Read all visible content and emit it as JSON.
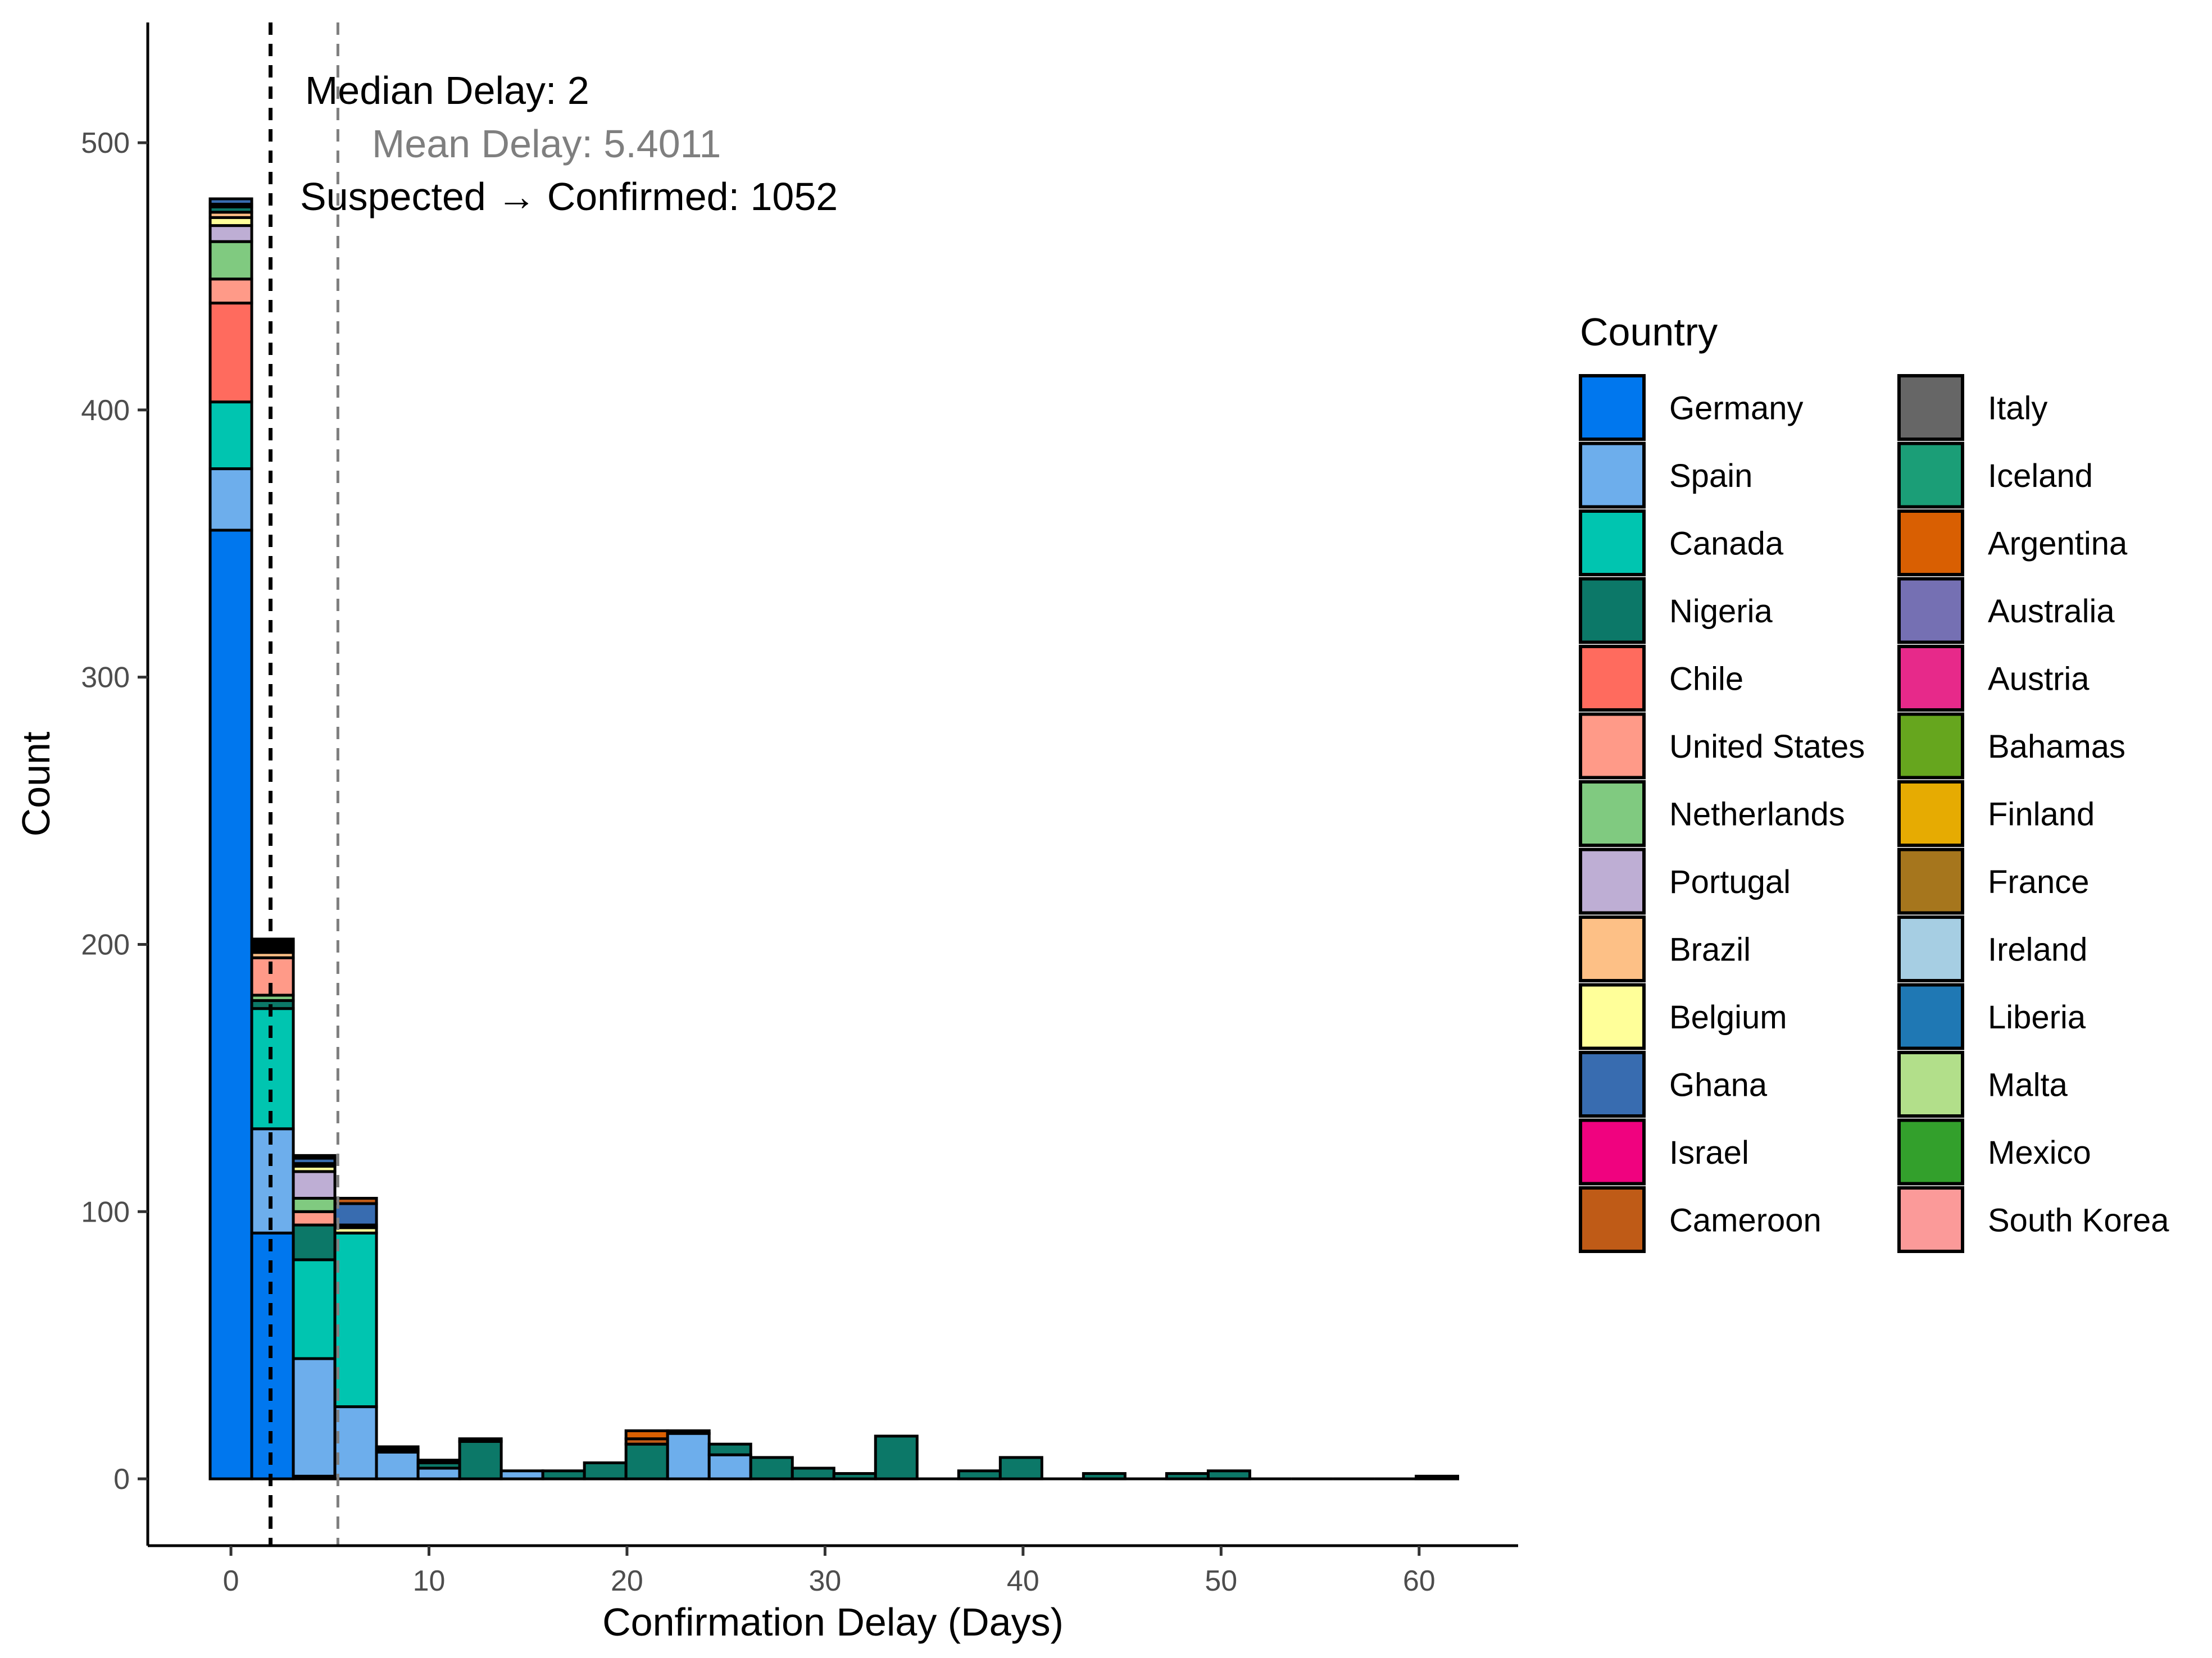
{
  "chart_data": {
    "type": "bar",
    "stacked": true,
    "xlabel": "Confirmation Delay (Days)",
    "ylabel": "Count",
    "xlim": [
      -4.2,
      65
    ],
    "ylim": [
      -25,
      545
    ],
    "xticks": [
      0,
      10,
      20,
      30,
      40,
      50,
      60
    ],
    "yticks": [
      0,
      100,
      200,
      300,
      400,
      500
    ],
    "bin_width": 2.1,
    "grid": false,
    "legend": {
      "title": "Country",
      "placement": "right",
      "columns": 2,
      "items": [
        {
          "name": "Germany",
          "color": "#0077EE"
        },
        {
          "name": "Spain",
          "color": "#6DAEEC"
        },
        {
          "name": "Canada",
          "color": "#00C5B0"
        },
        {
          "name": "Nigeria",
          "color": "#0C7868"
        },
        {
          "name": "Chile",
          "color": "#FF6B5E"
        },
        {
          "name": "United States",
          "color": "#FF9A88"
        },
        {
          "name": "Netherlands",
          "color": "#80CA80"
        },
        {
          "name": "Portugal",
          "color": "#BEAED4"
        },
        {
          "name": "Brazil",
          "color": "#FDC086"
        },
        {
          "name": "Belgium",
          "color": "#FFFF99"
        },
        {
          "name": "Ghana",
          "color": "#386CB0"
        },
        {
          "name": "Israel",
          "color": "#F0027F"
        },
        {
          "name": "Cameroon",
          "color": "#BF5B17"
        },
        {
          "name": "Italy",
          "color": "#666666"
        },
        {
          "name": "Iceland",
          "color": "#1B9E77"
        },
        {
          "name": "Argentina",
          "color": "#D95F02"
        },
        {
          "name": "Australia",
          "color": "#7570B3"
        },
        {
          "name": "Austria",
          "color": "#E7298A"
        },
        {
          "name": "Bahamas",
          "color": "#66A61E"
        },
        {
          "name": "Finland",
          "color": "#E6AB02"
        },
        {
          "name": "France",
          "color": "#A6761D"
        },
        {
          "name": "Ireland",
          "color": "#A6CEE3"
        },
        {
          "name": "Liberia",
          "color": "#1F78B4"
        },
        {
          "name": "Malta",
          "color": "#B2DF8A"
        },
        {
          "name": "Mexico",
          "color": "#33A02C"
        },
        {
          "name": "South Korea",
          "color": "#FB9A99"
        }
      ]
    },
    "bins": [
      {
        "x": 0,
        "segments": [
          {
            "country": "Germany",
            "value": 355
          },
          {
            "country": "Spain",
            "value": 23
          },
          {
            "country": "Canada",
            "value": 25
          },
          {
            "country": "Chile",
            "value": 37
          },
          {
            "country": "United States",
            "value": 9
          },
          {
            "country": "Netherlands",
            "value": 14
          },
          {
            "country": "Portugal",
            "value": 6
          },
          {
            "country": "Belgium",
            "value": 3
          },
          {
            "country": "Brazil",
            "value": 2
          },
          {
            "country": "Nigeria",
            "value": 2
          },
          {
            "country": "Cameroon",
            "value": 1
          },
          {
            "country": "Ghana",
            "value": 2
          }
        ]
      },
      {
        "x": 2.1,
        "segments": [
          {
            "country": "Germany",
            "value": 92
          },
          {
            "country": "Spain",
            "value": 39
          },
          {
            "country": "Canada",
            "value": 45
          },
          {
            "country": "Nigeria",
            "value": 3
          },
          {
            "country": "Netherlands",
            "value": 2
          },
          {
            "country": "United States",
            "value": 14
          },
          {
            "country": "Brazil",
            "value": 2
          },
          {
            "country": "Belgium",
            "value": 1
          },
          {
            "country": "Portugal",
            "value": 1
          },
          {
            "country": "Israel",
            "value": 1
          },
          {
            "country": "Cameroon",
            "value": 1
          },
          {
            "country": "Ghana",
            "value": 1
          }
        ]
      },
      {
        "x": 4.2,
        "segments": [
          {
            "country": "Germany",
            "value": 1
          },
          {
            "country": "Spain",
            "value": 44
          },
          {
            "country": "Canada",
            "value": 37
          },
          {
            "country": "Nigeria",
            "value": 13
          },
          {
            "country": "United States",
            "value": 5
          },
          {
            "country": "Netherlands",
            "value": 5
          },
          {
            "country": "Portugal",
            "value": 10
          },
          {
            "country": "Belgium",
            "value": 2
          },
          {
            "country": "Brazil",
            "value": 1
          },
          {
            "country": "Ghana",
            "value": 2
          },
          {
            "country": "Cameroon",
            "value": 1
          }
        ]
      },
      {
        "x": 6.3,
        "segments": [
          {
            "country": "Spain",
            "value": 27
          },
          {
            "country": "Canada",
            "value": 65
          },
          {
            "country": "Belgium",
            "value": 2
          },
          {
            "country": "Brazil",
            "value": 1
          },
          {
            "country": "Ghana",
            "value": 8
          },
          {
            "country": "Cameroon",
            "value": 2
          }
        ]
      },
      {
        "x": 8.4,
        "segments": [
          {
            "country": "Spain",
            "value": 10
          },
          {
            "country": "Brazil",
            "value": 1
          },
          {
            "country": "Cameroon",
            "value": 1
          }
        ]
      },
      {
        "x": 10.5,
        "segments": [
          {
            "country": "Spain",
            "value": 4
          },
          {
            "country": "Nigeria",
            "value": 2
          },
          {
            "country": "Ghana",
            "value": 1
          }
        ]
      },
      {
        "x": 12.6,
        "segments": [
          {
            "country": "Nigeria",
            "value": 14
          },
          {
            "country": "Spain",
            "value": 1
          }
        ]
      },
      {
        "x": 14.7,
        "segments": [
          {
            "country": "Spain",
            "value": 3
          }
        ]
      },
      {
        "x": 16.8,
        "segments": [
          {
            "country": "Nigeria",
            "value": 3
          }
        ]
      },
      {
        "x": 18.9,
        "segments": [
          {
            "country": "Nigeria",
            "value": 6
          }
        ]
      },
      {
        "x": 21.0,
        "segments": [
          {
            "country": "Nigeria",
            "value": 13
          },
          {
            "country": "Cameroon",
            "value": 2
          },
          {
            "country": "Argentina",
            "value": 3
          }
        ]
      },
      {
        "x": 23.1,
        "segments": [
          {
            "country": "Spain",
            "value": 17
          },
          {
            "country": "Nigeria",
            "value": 1
          }
        ]
      },
      {
        "x": 25.2,
        "segments": [
          {
            "country": "Spain",
            "value": 9
          },
          {
            "country": "Nigeria",
            "value": 4
          }
        ]
      },
      {
        "x": 27.3,
        "segments": [
          {
            "country": "Nigeria",
            "value": 8
          }
        ]
      },
      {
        "x": 29.4,
        "segments": [
          {
            "country": "Nigeria",
            "value": 4
          }
        ]
      },
      {
        "x": 31.5,
        "segments": [
          {
            "country": "Nigeria",
            "value": 2
          }
        ]
      },
      {
        "x": 33.6,
        "segments": [
          {
            "country": "Nigeria",
            "value": 16
          }
        ]
      },
      {
        "x": 35.7,
        "segments": []
      },
      {
        "x": 37.8,
        "segments": [
          {
            "country": "Nigeria",
            "value": 3
          }
        ]
      },
      {
        "x": 39.9,
        "segments": [
          {
            "country": "Nigeria",
            "value": 8
          }
        ]
      },
      {
        "x": 42.0,
        "segments": []
      },
      {
        "x": 44.1,
        "segments": [
          {
            "country": "Nigeria",
            "value": 2
          }
        ]
      },
      {
        "x": 46.2,
        "segments": []
      },
      {
        "x": 48.3,
        "segments": [
          {
            "country": "Nigeria",
            "value": 2
          }
        ]
      },
      {
        "x": 50.4,
        "segments": [
          {
            "country": "Nigeria",
            "value": 3
          }
        ]
      },
      {
        "x": 52.5,
        "segments": []
      },
      {
        "x": 54.6,
        "segments": []
      },
      {
        "x": 56.7,
        "segments": []
      },
      {
        "x": 58.8,
        "segments": []
      },
      {
        "x": 60.9,
        "segments": [
          {
            "country": "Nigeria",
            "value": 1
          }
        ]
      }
    ],
    "reference_lines": [
      {
        "x": 2,
        "style": "dashed",
        "color": "#000000"
      },
      {
        "x": 5.4011,
        "style": "dashed",
        "color": "#7f7f7f"
      }
    ],
    "annotations": [
      {
        "text": "Median Delay: 2",
        "color": "#000000"
      },
      {
        "text": "Mean Delay: 5.4011",
        "color": "#7f7f7f"
      },
      {
        "text": "Suspected → Confirmed: 1052",
        "color": "#000000"
      }
    ]
  }
}
